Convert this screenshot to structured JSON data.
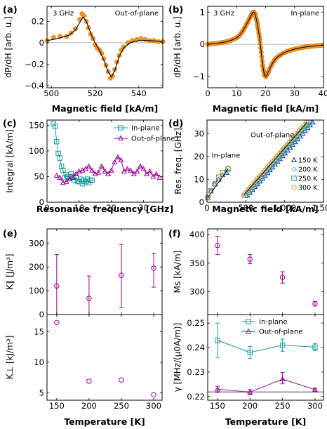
{
  "colors": {
    "orange": "#f7941d",
    "teal": "#1a9a99",
    "purple": "#a0009a",
    "navy": "#1a1ab0",
    "lightblue": "#49c3e6",
    "black": "#000000",
    "gray": "#bdbdbd"
  },
  "chart_data": [
    {
      "panel": "(a)",
      "type": "line",
      "annotations": [
        "3 GHz",
        "Out-of-plane"
      ],
      "xlabel": "Magnetic field [kA/m]",
      "ylabel": "dP/dH [arb. u.]",
      "xlim": [
        498,
        551
      ],
      "ylim": [
        -0.42,
        0.34
      ],
      "xticks": [
        "500",
        "520",
        "540"
      ],
      "yticks": [
        "−0.4",
        "−0.2",
        "0",
        "0.2"
      ],
      "series": [
        {
          "style": "orange-points",
          "x": [
            498,
            501,
            504,
            507,
            509,
            511,
            513,
            514,
            515,
            516,
            517,
            518,
            519,
            520,
            521,
            522,
            523,
            524,
            525,
            526,
            527,
            528,
            529,
            530,
            531,
            532,
            533,
            535,
            537,
            539,
            541,
            543,
            545,
            547,
            549,
            551
          ],
          "y": [
            0.02,
            0.05,
            0.06,
            0.06,
            0.09,
            0.13,
            0.22,
            0.27,
            0.25,
            0.2,
            0.14,
            0.08,
            0.04,
            -0.02,
            -0.05,
            -0.07,
            -0.1,
            -0.15,
            -0.21,
            -0.27,
            -0.33,
            -0.31,
            -0.25,
            -0.18,
            -0.12,
            -0.07,
            -0.04,
            0.0,
            0.02,
            0.03,
            0.04,
            0.03,
            0.02,
            0.02,
            0.01,
            0.01
          ]
        },
        {
          "style": "black-fit",
          "x": [
            498,
            503,
            508,
            511,
            513,
            514.5,
            516,
            518,
            520,
            522,
            524,
            526,
            527.5,
            529,
            531,
            533,
            536,
            540,
            545,
            551
          ],
          "y": [
            0.02,
            0.04,
            0.07,
            0.12,
            0.19,
            0.24,
            0.2,
            0.09,
            0.0,
            -0.07,
            -0.16,
            -0.27,
            -0.32,
            -0.26,
            -0.13,
            -0.05,
            0.0,
            0.02,
            0.02,
            0.01
          ]
        }
      ]
    },
    {
      "panel": "(b)",
      "type": "line",
      "annotations": [
        "3 GHz",
        "In-plane"
      ],
      "xlabel": "Magnetic field [kA/m]",
      "ylabel": "dP/dH [arb. u.]",
      "xlim": [
        0,
        40
      ],
      "ylim": [
        -1.35,
        1.18
      ],
      "xticks": [
        "0",
        "10",
        "20",
        "30",
        "40"
      ],
      "yticks": [
        "−1",
        "0",
        "1"
      ],
      "series": [
        {
          "style": "orange-points",
          "x": [
            0,
            2,
            4,
            6,
            8,
            10,
            11,
            12,
            13,
            14,
            15,
            15.5,
            16,
            16.5,
            17,
            17.5,
            18,
            18.5,
            19,
            19.5,
            20,
            20.5,
            21,
            22,
            23,
            24,
            26,
            28,
            30,
            32,
            34,
            36,
            38,
            40
          ],
          "y": [
            0.0,
            0.02,
            0.04,
            0.07,
            0.12,
            0.2,
            0.28,
            0.4,
            0.55,
            0.72,
            0.9,
            0.98,
            1.0,
            0.9,
            0.7,
            0.45,
            0.15,
            -0.25,
            -0.65,
            -0.92,
            -1.0,
            -0.95,
            -0.85,
            -0.65,
            -0.5,
            -0.4,
            -0.28,
            -0.2,
            -0.15,
            -0.11,
            -0.08,
            -0.06,
            -0.04,
            -0.03
          ]
        },
        {
          "style": "black-fit",
          "x": [
            0,
            2,
            4,
            6,
            8,
            10,
            11,
            12,
            13,
            14,
            15,
            15.5,
            16,
            16.5,
            17,
            17.5,
            18,
            18.5,
            19,
            19.5,
            20,
            20.5,
            21,
            22,
            23,
            24,
            26,
            28,
            30,
            32,
            34,
            36,
            38,
            40
          ],
          "y": [
            0.0,
            0.02,
            0.04,
            0.07,
            0.12,
            0.2,
            0.28,
            0.4,
            0.55,
            0.72,
            0.9,
            0.98,
            1.0,
            0.9,
            0.7,
            0.45,
            0.15,
            -0.25,
            -0.65,
            -0.92,
            -1.0,
            -0.95,
            -0.85,
            -0.65,
            -0.5,
            -0.4,
            -0.28,
            -0.2,
            -0.15,
            -0.11,
            -0.08,
            -0.06,
            -0.04,
            -0.03
          ]
        }
      ]
    },
    {
      "panel": "(c)",
      "type": "line",
      "xlabel": "Resonance frequency [GHz]",
      "ylabel": "Integral [kA/m]",
      "xlim": [
        0,
        36
      ],
      "ylim": [
        0,
        160
      ],
      "xticks": [
        "0",
        "10",
        "20",
        "30"
      ],
      "yticks": [
        "0",
        "50",
        "100",
        "150"
      ],
      "legend": "top-right",
      "series": [
        {
          "name": "In-plane",
          "marker": "square",
          "x": [
            2,
            2.5,
            3,
            3.5,
            4,
            4.5,
            5,
            5.5,
            6,
            6.5,
            7,
            7.5,
            8,
            8.5,
            9,
            9.5,
            10,
            10.5,
            11,
            11.5,
            12,
            12.5,
            13,
            13.5,
            14
          ],
          "y": [
            153,
            148,
            118,
            95,
            86,
            70,
            62,
            48,
            54,
            50,
            46,
            55,
            50,
            43,
            48,
            41,
            40,
            45,
            36,
            42,
            40,
            45,
            38,
            42,
            43
          ]
        },
        {
          "name": "Out-of-plane",
          "marker": "triangle",
          "x": [
            3,
            4,
            5,
            6,
            7,
            8,
            9,
            10,
            11,
            12,
            13,
            14,
            15,
            16,
            17,
            18,
            19,
            20,
            21,
            22,
            23,
            24,
            25,
            26,
            27,
            28,
            29,
            30,
            31,
            32,
            33,
            34,
            35
          ],
          "y": [
            52,
            48,
            38,
            40,
            45,
            48,
            55,
            60,
            62,
            65,
            70,
            62,
            55,
            58,
            70,
            60,
            55,
            62,
            78,
            88,
            82,
            60,
            65,
            62,
            55,
            60,
            70,
            65,
            55,
            60,
            50,
            55,
            48
          ]
        }
      ]
    },
    {
      "panel": "(d)",
      "type": "scatter",
      "annotations": [
        "In-plane",
        "Out-of-plane"
      ],
      "xlabel": "Magnetic field [kA/m]",
      "ylabel": "Res. freq. [GHz]",
      "xlim": [
        0,
        1500
      ],
      "ylim": [
        0,
        36
      ],
      "xticks": [
        "0",
        "500",
        "1,000",
        "1,500"
      ],
      "yticks": [
        "0",
        "10",
        "20",
        "30"
      ],
      "legend": "right",
      "series": [
        {
          "name": "150 K",
          "marker": "triangle",
          "ip_x": [
            10,
            50,
            100,
            150,
            200,
            250
          ],
          "ip_y": [
            2,
            5,
            8,
            10,
            12,
            13
          ],
          "op_x": [
            520,
            1360
          ],
          "op_y": [
            3,
            35
          ]
        },
        {
          "name": "200 K",
          "marker": "diamond",
          "ip_x": [
            10,
            50,
            100,
            150,
            200,
            260
          ],
          "ip_y": [
            2,
            5,
            8,
            10,
            12,
            14
          ],
          "op_x": [
            505,
            1335
          ],
          "op_y": [
            3,
            35
          ]
        },
        {
          "name": "250 K",
          "marker": "square",
          "ip_x": [
            10,
            50,
            100,
            150,
            200,
            270
          ],
          "ip_y": [
            2,
            5,
            8,
            11,
            13,
            14.5
          ],
          "op_x": [
            490,
            1310
          ],
          "op_y": [
            3,
            35
          ]
        },
        {
          "name": "300 K",
          "marker": "circle",
          "ip_x": [
            10,
            50,
            100,
            150,
            200,
            275
          ],
          "ip_y": [
            2,
            5,
            8,
            11,
            13,
            15
          ],
          "op_x": [
            470,
            1280
          ],
          "op_y": [
            3,
            35
          ]
        }
      ]
    },
    {
      "panel": "(e)",
      "type": "scatter",
      "xlabel": "Temperature [K]",
      "subplots": [
        {
          "ylabel": "K∥ [J/m³]",
          "ylim": [
            0,
            360
          ],
          "yticks": [
            "0",
            "100",
            "200",
            "300"
          ],
          "x": [
            150,
            200,
            250,
            300
          ],
          "y": [
            120,
            68,
            165,
            195
          ],
          "yerr_low": [
            0,
            0,
            30,
            115
          ],
          "yerr_high": [
            252,
            162,
            295,
            258
          ]
        },
        {
          "ylabel": "K⊥ [kJ/m³]",
          "ylim": [
            3.8,
            17.8
          ],
          "yticks": [
            "5",
            "10",
            "15"
          ],
          "x": [
            150,
            200,
            250,
            300
          ],
          "y": [
            16.5,
            6.9,
            7.1,
            4.7
          ],
          "yerr_low": [
            16.5,
            6.9,
            7.1,
            4.7
          ],
          "yerr_high": [
            16.5,
            6.9,
            7.1,
            4.7
          ]
        }
      ],
      "xlim": [
        135,
        313
      ],
      "xticks": [
        "150",
        "200",
        "250",
        "300"
      ]
    },
    {
      "panel": "(f)",
      "type": "scatter",
      "xlabel": "Temperature [K]",
      "subplots": [
        {
          "ylabel": "Ms [kA/m]",
          "ylim": [
            260,
            410
          ],
          "yticks": [
            "300",
            "350",
            "400"
          ],
          "x": [
            150,
            200,
            250,
            300
          ],
          "y": [
            381,
            357,
            325,
            279
          ],
          "yerr_low": [
            365,
            349,
            315,
            275
          ],
          "yerr_high": [
            397,
            365,
            335,
            283
          ]
        },
        {
          "ylabel": "γ [MHz/(μ0A/m)]",
          "ylim": [
            0.2185,
            0.2535
          ],
          "yticks": [
            "0.22",
            "0.23",
            "0.24",
            "0.25"
          ],
          "legend": "top-right",
          "band": [
            0.2214,
            0.2222
          ],
          "series": [
            {
              "name": "In-plane",
              "marker": "square",
              "x": [
                150,
                200,
                250,
                300
              ],
              "y": [
                0.243,
                0.238,
                0.241,
                0.2402
              ],
              "yerr_low": [
                0.236,
                0.2355,
                0.2385,
                0.2388
              ],
              "yerr_high": [
                0.25,
                0.2405,
                0.2435,
                0.2416
              ]
            },
            {
              "name": "Out-of-plane",
              "marker": "triangle",
              "x": [
                150,
                200,
                250,
                300
              ],
              "y": [
                0.223,
                0.2218,
                0.2271,
                0.2228
              ],
              "yerr_low": [
                0.2218,
                0.2208,
                0.2252,
                0.2222
              ],
              "yerr_high": [
                0.2242,
                0.2228,
                0.2298,
                0.2234
              ]
            }
          ]
        }
      ],
      "xlim": [
        135,
        313
      ],
      "xticks": [
        "150",
        "200",
        "250",
        "300"
      ]
    }
  ]
}
